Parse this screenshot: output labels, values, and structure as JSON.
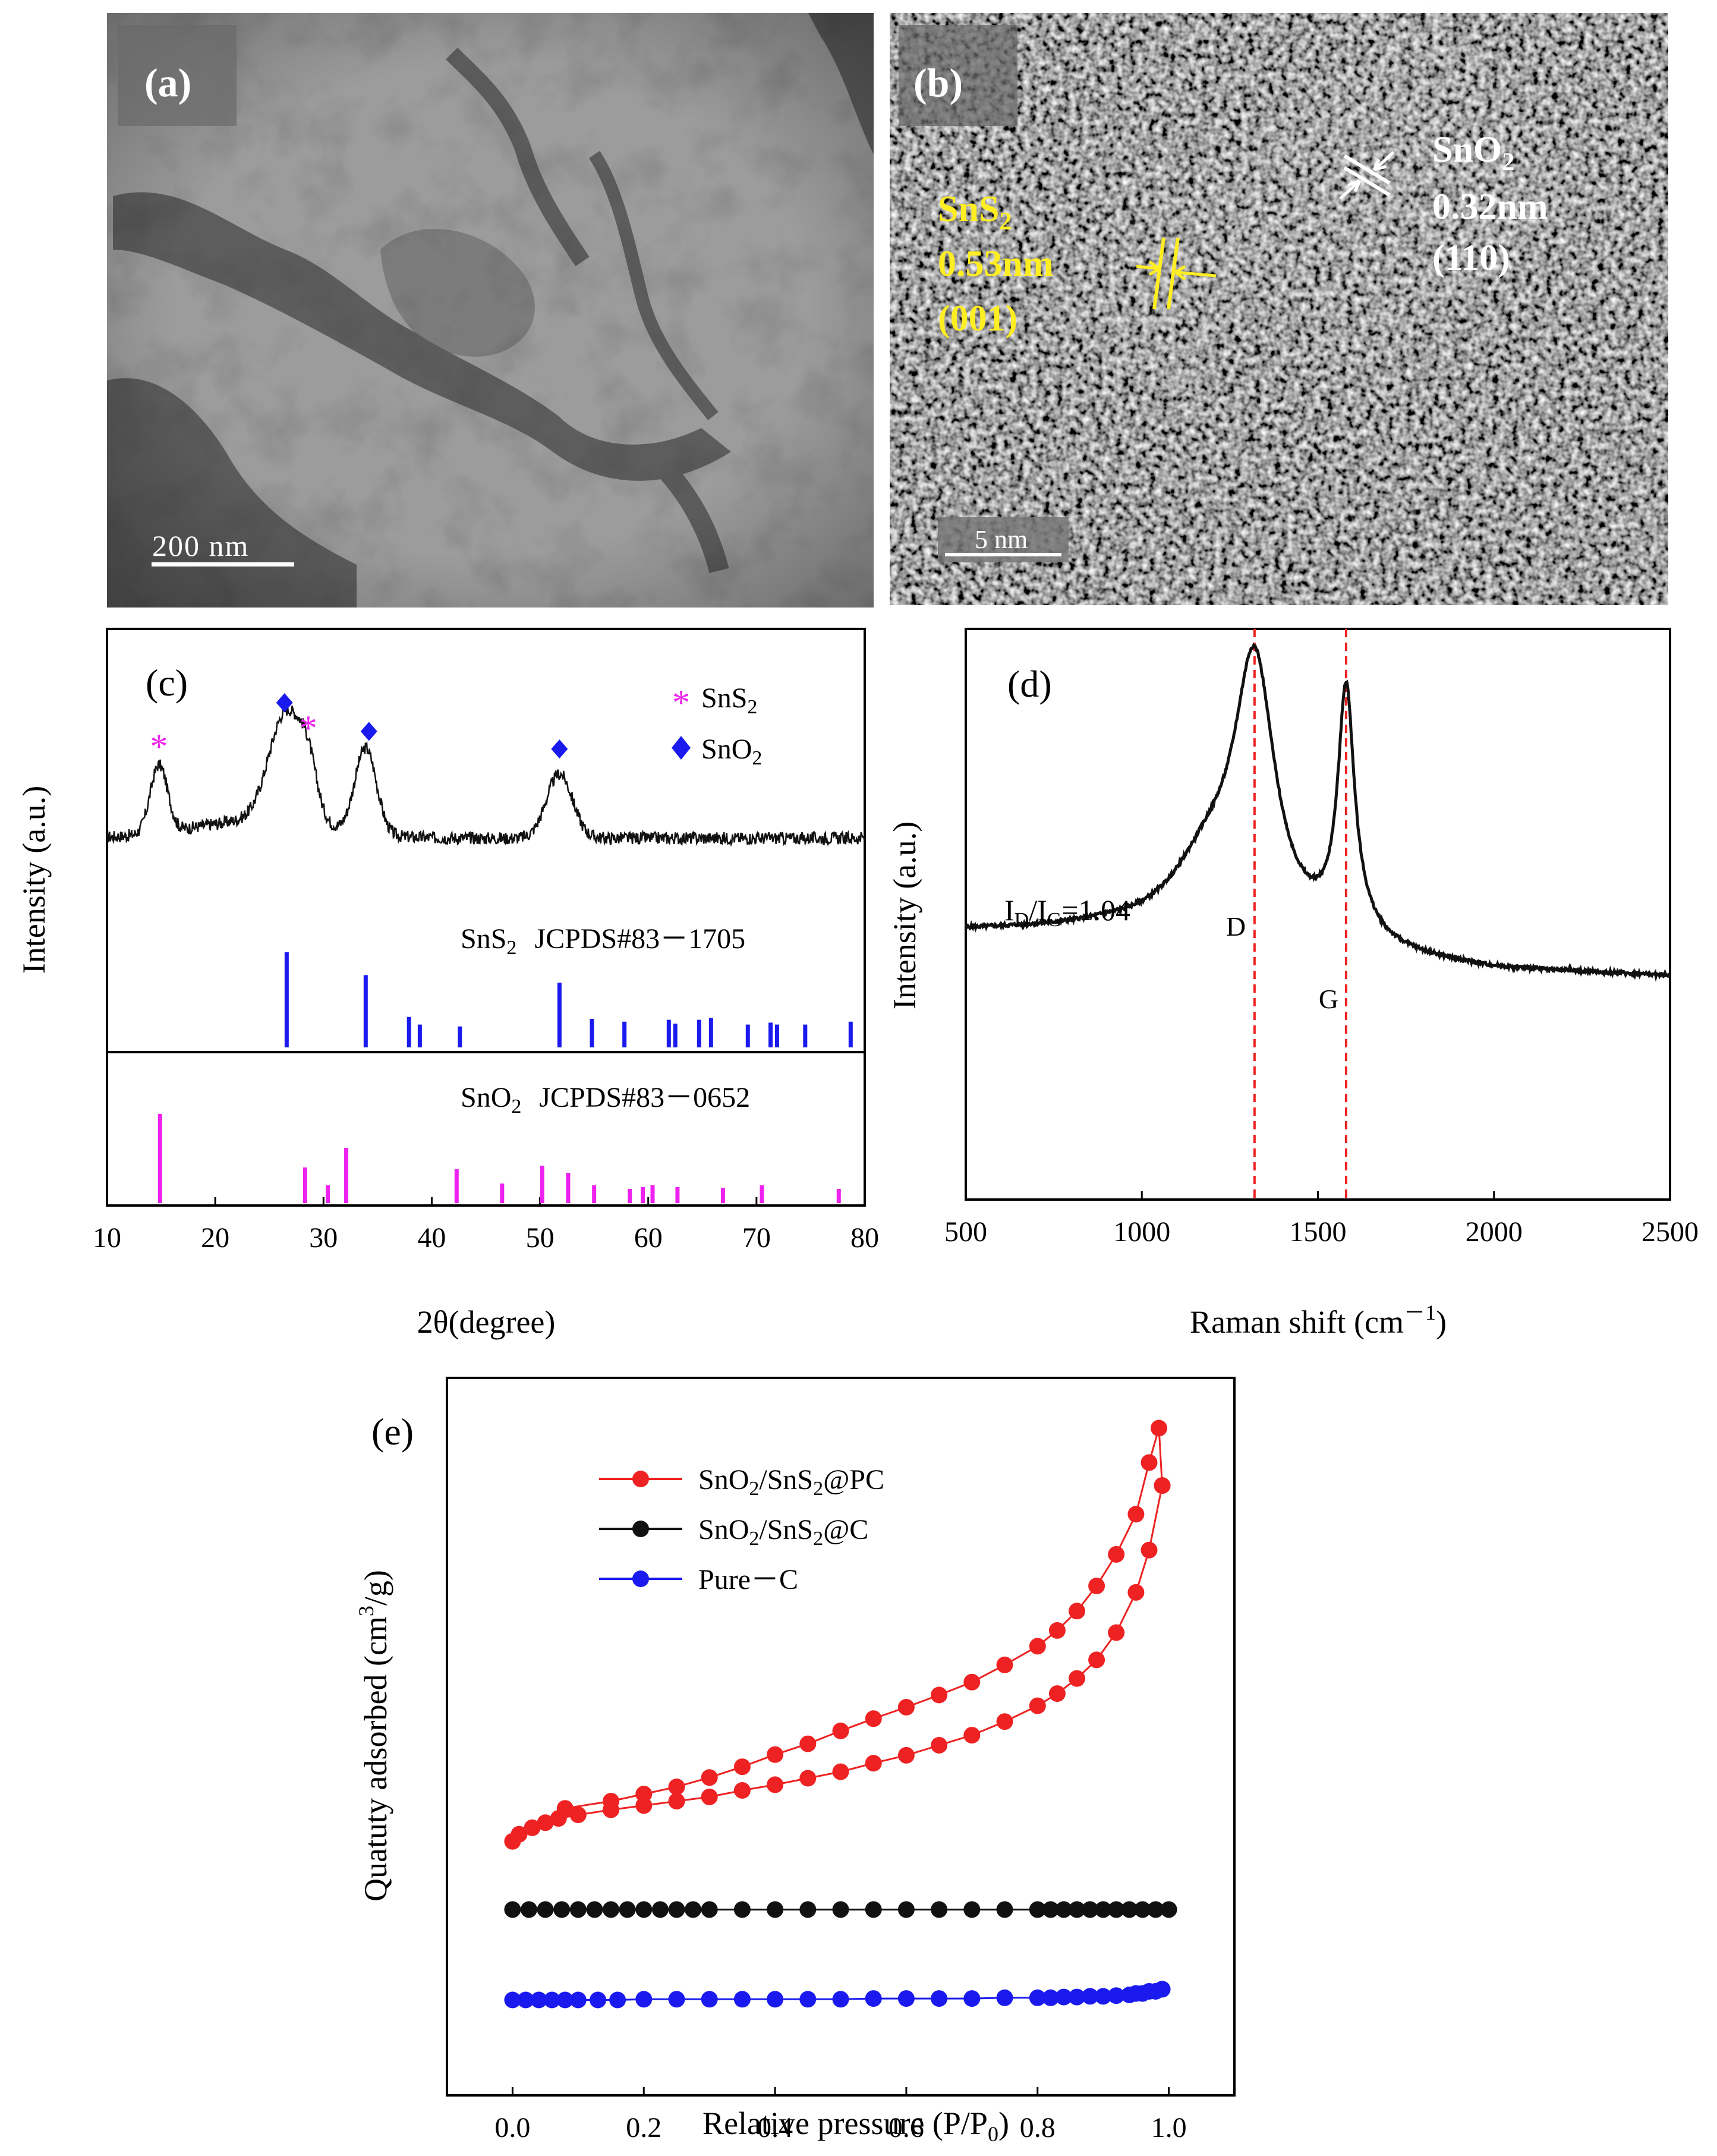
{
  "figure": {
    "panel_a": {
      "label": "(a)",
      "scale_bar": "200  nm"
    },
    "panel_b": {
      "label": "(b)",
      "scale_bar": "5 nm",
      "sns2_name": "SnS",
      "sns2_sub": "2",
      "sns2_spacing": "0.53nm",
      "sns2_plane": "(001)",
      "sno2_name": "SnO",
      "sno2_sub": "2",
      "sno2_spacing": "0.32nm",
      "sno2_plane": "(110)"
    }
  },
  "chart_data": [
    {
      "panel": "(c)",
      "type": "line",
      "xlabel": "2θ(degree)",
      "ylabel": "Intensity (a.u.)",
      "xlim": [
        10,
        80
      ],
      "xticks": [
        "10",
        "20",
        "30",
        "40",
        "50",
        "60",
        "70",
        "80"
      ],
      "legend": [
        {
          "symbol": "*",
          "name": "SnS",
          "sub": "2",
          "color": "#ee22ee"
        },
        {
          "symbol": "diamond",
          "name": "SnO",
          "sub": "2",
          "color": "#1a1aee"
        }
      ],
      "pattern": {
        "baseline": 0.1,
        "peaks": [
          {
            "x": 14.8,
            "height": 0.38,
            "width": 0.8
          },
          {
            "x": 26.6,
            "height": 0.62,
            "width": 1.6
          },
          {
            "x": 28.6,
            "height": 0.2,
            "width": 0.8
          },
          {
            "x": 33.9,
            "height": 0.48,
            "width": 1.0
          },
          {
            "x": 51.8,
            "height": 0.36,
            "width": 1.2
          }
        ]
      },
      "markers": [
        {
          "x": 14.8,
          "kind": "star",
          "phase": "SnS2"
        },
        {
          "x": 26.4,
          "kind": "diamond",
          "phase": "SnO2"
        },
        {
          "x": 28.6,
          "kind": "star",
          "phase": "SnS2"
        },
        {
          "x": 34.2,
          "kind": "diamond",
          "phase": "SnO2"
        },
        {
          "x": 51.8,
          "kind": "diamond",
          "phase": "SnO2"
        }
      ],
      "reference_1": {
        "name": "SnS",
        "sub": "2",
        "card": "JCPDS#83－1705",
        "color": "#1a1aee",
        "lines": [
          {
            "x": 26.6,
            "h": 1.0
          },
          {
            "x": 33.9,
            "h": 0.76
          },
          {
            "x": 37.9,
            "h": 0.32
          },
          {
            "x": 38.9,
            "h": 0.24
          },
          {
            "x": 42.6,
            "h": 0.22
          },
          {
            "x": 51.8,
            "h": 0.68
          },
          {
            "x": 54.8,
            "h": 0.3
          },
          {
            "x": 57.8,
            "h": 0.27
          },
          {
            "x": 61.9,
            "h": 0.29
          },
          {
            "x": 62.5,
            "h": 0.25
          },
          {
            "x": 64.7,
            "h": 0.29
          },
          {
            "x": 65.8,
            "h": 0.31
          },
          {
            "x": 69.2,
            "h": 0.24
          },
          {
            "x": 71.3,
            "h": 0.26
          },
          {
            "x": 71.9,
            "h": 0.24
          },
          {
            "x": 74.5,
            "h": 0.24
          },
          {
            "x": 78.7,
            "h": 0.27
          }
        ]
      },
      "reference_2": {
        "name": "SnO",
        "sub": "2",
        "card": "JCPDS#83－0652",
        "color": "#ee22ee",
        "lines": [
          {
            "x": 14.9,
            "h": 1.0
          },
          {
            "x": 28.3,
            "h": 0.4
          },
          {
            "x": 30.4,
            "h": 0.2
          },
          {
            "x": 32.1,
            "h": 0.62
          },
          {
            "x": 42.3,
            "h": 0.38
          },
          {
            "x": 46.5,
            "h": 0.22
          },
          {
            "x": 50.2,
            "h": 0.42
          },
          {
            "x": 52.6,
            "h": 0.34
          },
          {
            "x": 55.0,
            "h": 0.2
          },
          {
            "x": 58.3,
            "h": 0.16
          },
          {
            "x": 59.5,
            "h": 0.18
          },
          {
            "x": 60.4,
            "h": 0.2
          },
          {
            "x": 62.7,
            "h": 0.18
          },
          {
            "x": 66.9,
            "h": 0.17
          },
          {
            "x": 70.5,
            "h": 0.2
          },
          {
            "x": 77.6,
            "h": 0.16
          }
        ]
      }
    },
    {
      "panel": "(d)",
      "type": "line",
      "xlabel": "Raman shift (cm",
      "xlabel_sup": "－1",
      "xlabel_close": ")",
      "ylabel": "Intensity (a.u.)",
      "xlim": [
        500,
        2500
      ],
      "xticks": [
        "500",
        "1000",
        "1500",
        "2000",
        "2500"
      ],
      "ylim": [
        0,
        1
      ],
      "ratio_label": {
        "I": "I",
        "D": "D",
        "slash": "/I",
        "G": "G",
        "value": "=1.04"
      },
      "band_D": {
        "label": "D",
        "x": 1320
      },
      "band_G": {
        "label": "G",
        "x": 1580
      },
      "guide_color": "#ee2222",
      "spectrum": {
        "baseline": [
          {
            "x": 500,
            "y": 0.47
          },
          {
            "x": 900,
            "y": 0.47
          },
          {
            "x": 2000,
            "y": 0.4
          },
          {
            "x": 2500,
            "y": 0.39
          }
        ],
        "bands": [
          {
            "x": 1320,
            "height": 0.46,
            "width": 70
          },
          {
            "x": 1190,
            "height": 0.12,
            "width": 130
          },
          {
            "x": 1580,
            "height": 0.41,
            "width": 28
          },
          {
            "x": 1600,
            "height": 0.03,
            "width": 80
          }
        ]
      }
    },
    {
      "panel": "(e)",
      "type": "scatter",
      "xlabel": "Relative pressure (P/P",
      "xlabel_sub": "0",
      "xlabel_close": ")",
      "ylabel": "Quatuty adsorbed (cm",
      "ylabel_sup": "3",
      "ylabel_close": "/g)",
      "xlim": [
        -0.1,
        1.1
      ],
      "ylim": [
        0,
        1
      ],
      "xticks": [
        "0.0",
        "0.2",
        "0.4",
        "0.6",
        "0.8",
        "1.0"
      ],
      "series": [
        {
          "name": "SnO",
          "sub": "2",
          "rest": "/SnS",
          "sub2": "2",
          "suffix": "@PC",
          "color": "#ee2222",
          "adsorption": [
            [
              0.0,
              0.354
            ],
            [
              0.01,
              0.364
            ],
            [
              0.03,
              0.373
            ],
            [
              0.05,
              0.38
            ],
            [
              0.07,
              0.386
            ],
            [
              0.1,
              0.391
            ],
            [
              0.15,
              0.398
            ],
            [
              0.2,
              0.404
            ],
            [
              0.25,
              0.41
            ],
            [
              0.3,
              0.416
            ],
            [
              0.35,
              0.425
            ],
            [
              0.4,
              0.433
            ],
            [
              0.45,
              0.442
            ],
            [
              0.5,
              0.451
            ],
            [
              0.55,
              0.463
            ],
            [
              0.6,
              0.474
            ],
            [
              0.65,
              0.488
            ],
            [
              0.7,
              0.502
            ],
            [
              0.75,
              0.521
            ],
            [
              0.8,
              0.543
            ],
            [
              0.83,
              0.56
            ],
            [
              0.86,
              0.581
            ],
            [
              0.89,
              0.607
            ],
            [
              0.92,
              0.645
            ],
            [
              0.95,
              0.701
            ],
            [
              0.97,
              0.76
            ],
            [
              0.99,
              0.85
            ]
          ],
          "desorption": [
            [
              0.99,
              0.85
            ],
            [
              0.985,
              0.93
            ],
            [
              0.97,
              0.882
            ],
            [
              0.95,
              0.81
            ],
            [
              0.92,
              0.754
            ],
            [
              0.89,
              0.71
            ],
            [
              0.86,
              0.675
            ],
            [
              0.83,
              0.648
            ],
            [
              0.8,
              0.626
            ],
            [
              0.75,
              0.6
            ],
            [
              0.7,
              0.576
            ],
            [
              0.65,
              0.558
            ],
            [
              0.6,
              0.541
            ],
            [
              0.55,
              0.525
            ],
            [
              0.5,
              0.508
            ],
            [
              0.45,
              0.49
            ],
            [
              0.4,
              0.475
            ],
            [
              0.35,
              0.458
            ],
            [
              0.3,
              0.443
            ],
            [
              0.25,
              0.43
            ],
            [
              0.2,
              0.42
            ],
            [
              0.15,
              0.41
            ],
            [
              0.08,
              0.4
            ]
          ]
        },
        {
          "name": "SnO",
          "sub": "2",
          "rest": "/SnS",
          "sub2": "2",
          "suffix": "@C",
          "color": "#111111",
          "adsorption": [
            [
              0.0,
              0.259
            ],
            [
              0.025,
              0.259
            ],
            [
              0.05,
              0.259
            ],
            [
              0.075,
              0.259
            ],
            [
              0.1,
              0.259
            ],
            [
              0.125,
              0.259
            ],
            [
              0.15,
              0.259
            ],
            [
              0.175,
              0.259
            ],
            [
              0.2,
              0.259
            ],
            [
              0.225,
              0.259
            ],
            [
              0.25,
              0.259
            ],
            [
              0.275,
              0.259
            ],
            [
              0.3,
              0.259
            ],
            [
              0.35,
              0.259
            ],
            [
              0.4,
              0.259
            ],
            [
              0.45,
              0.259
            ],
            [
              0.5,
              0.259
            ],
            [
              0.55,
              0.259
            ],
            [
              0.6,
              0.259
            ],
            [
              0.65,
              0.259
            ],
            [
              0.7,
              0.259
            ],
            [
              0.75,
              0.259
            ],
            [
              0.8,
              0.259
            ],
            [
              0.82,
              0.259
            ],
            [
              0.84,
              0.259
            ],
            [
              0.86,
              0.259
            ],
            [
              0.88,
              0.259
            ],
            [
              0.9,
              0.259
            ],
            [
              0.92,
              0.259
            ],
            [
              0.94,
              0.259
            ],
            [
              0.96,
              0.259
            ],
            [
              0.98,
              0.259
            ],
            [
              1.0,
              0.259
            ]
          ],
          "desorption": []
        },
        {
          "name": "Pure－C",
          "sub": "",
          "rest": "",
          "sub2": "",
          "suffix": "",
          "color": "#1a1aee",
          "adsorption": [
            [
              0.0,
              0.133
            ],
            [
              0.02,
              0.133
            ],
            [
              0.04,
              0.133
            ],
            [
              0.06,
              0.133
            ],
            [
              0.08,
              0.133
            ],
            [
              0.1,
              0.133
            ],
            [
              0.13,
              0.133
            ],
            [
              0.16,
              0.133
            ],
            [
              0.2,
              0.134
            ],
            [
              0.25,
              0.134
            ],
            [
              0.3,
              0.134
            ],
            [
              0.35,
              0.134
            ],
            [
              0.4,
              0.134
            ],
            [
              0.45,
              0.134
            ],
            [
              0.5,
              0.134
            ],
            [
              0.55,
              0.135
            ],
            [
              0.6,
              0.135
            ],
            [
              0.65,
              0.135
            ],
            [
              0.7,
              0.135
            ],
            [
              0.75,
              0.136
            ],
            [
              0.8,
              0.136
            ],
            [
              0.82,
              0.136
            ],
            [
              0.84,
              0.137
            ],
            [
              0.86,
              0.137
            ],
            [
              0.88,
              0.138
            ],
            [
              0.9,
              0.138
            ],
            [
              0.92,
              0.139
            ],
            [
              0.94,
              0.14
            ],
            [
              0.96,
              0.142
            ],
            [
              0.98,
              0.145
            ],
            [
              0.99,
              0.148
            ]
          ],
          "desorption": [
            [
              0.99,
              0.148
            ],
            [
              0.97,
              0.145
            ],
            [
              0.95,
              0.142
            ]
          ]
        }
      ]
    }
  ]
}
